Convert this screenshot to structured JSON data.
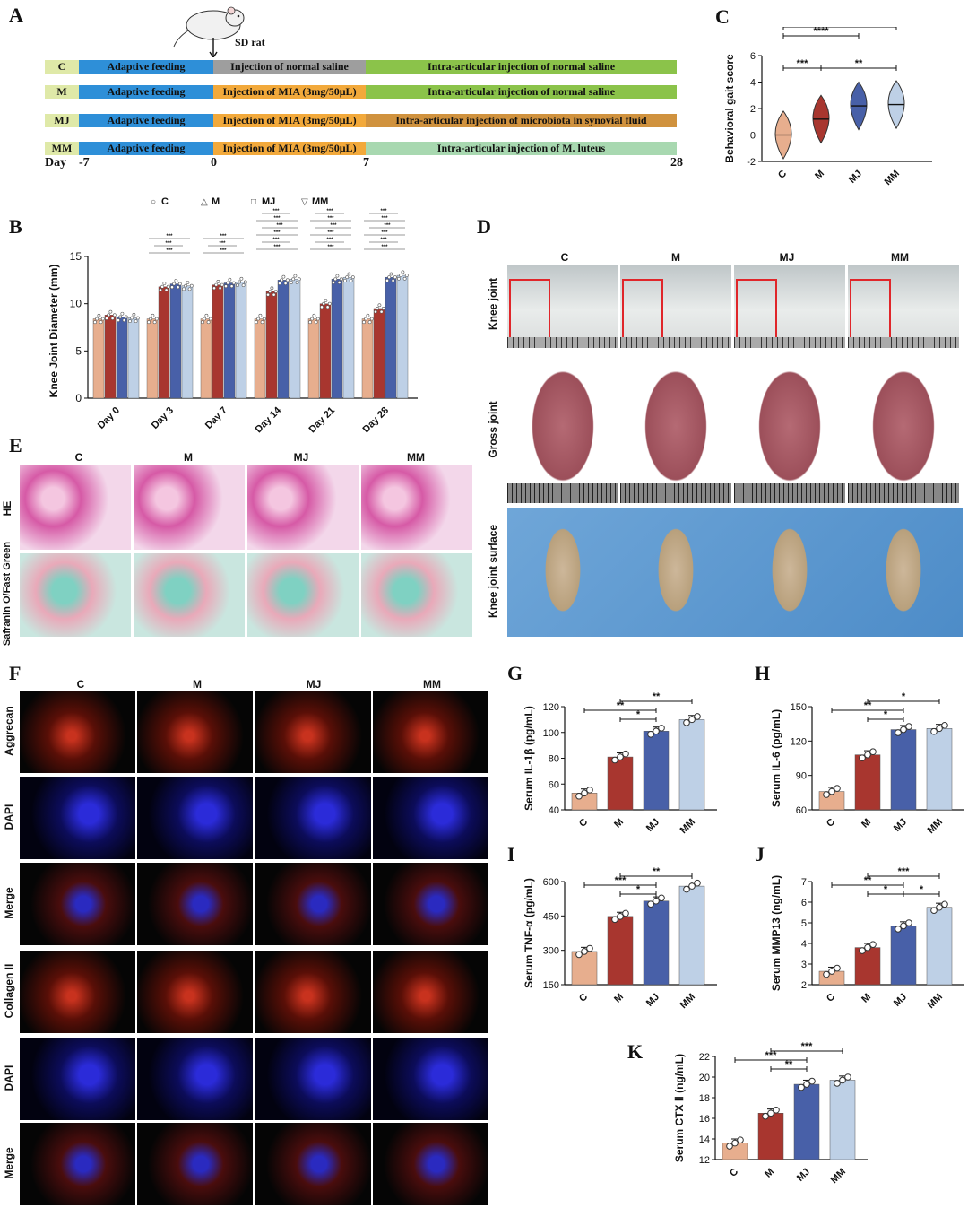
{
  "panels": {
    "A": "A",
    "B": "B",
    "C": "C",
    "D": "D",
    "E": "E",
    "F": "F",
    "G": "G",
    "H": "H",
    "I": "I",
    "J": "J",
    "K": "K"
  },
  "timeline": {
    "animal": "SD rat",
    "day_label": "Day",
    "day_ticks": [
      "-7",
      "0",
      "7",
      "28"
    ],
    "rows": [
      {
        "group": "C",
        "adaptive": "Adaptive feeding",
        "phase1": "Injection of normal saline",
        "phase2": "Intra-articular injection of normal saline",
        "c1": "#9e9e9e",
        "c2": "#8bc34a"
      },
      {
        "group": "M",
        "adaptive": "Adaptive feeding",
        "phase1": "Injection of MIA (3mg/50μL)",
        "phase2": "Intra-articular injection of normal saline",
        "c1": "#f2a93b",
        "c2": "#8bc34a"
      },
      {
        "group": "MJ",
        "adaptive": "Adaptive feeding",
        "phase1": "Injection of MIA (3mg/50μL)",
        "phase2": "Intra-articular injection of microbiota in synovial fluid",
        "c1": "#f2a93b",
        "c2": "#d0923e"
      },
      {
        "group": "MM",
        "adaptive": "Adaptive feeding",
        "phase1": "Injection of MIA (3mg/50μL)",
        "phase2": "Intra-articular injection of M. luteus",
        "c1": "#f2a93b",
        "c2": "#a8d8b0"
      }
    ]
  },
  "groups": [
    "C",
    "M",
    "MJ",
    "MM"
  ],
  "colors": {
    "C": "#e7ae8e",
    "M": "#a8362f",
    "MJ": "#4860a8",
    "MM": "#bed0e6"
  },
  "panelD": {
    "rows": [
      "Knee joint",
      "Gross joint",
      "Knee joint surface"
    ]
  },
  "panelE": {
    "rows": [
      "HE",
      "Safranin O/Fast Green"
    ]
  },
  "panelF": {
    "rows": [
      "Aggrecan",
      "DAPI",
      "Merge",
      "Collagen II",
      "DAPI",
      "Merge"
    ]
  },
  "chart_data": [
    {
      "id": "B",
      "type": "bar",
      "ylabel": "Knee Joint Diameter (mm)",
      "ylim": [
        0,
        15
      ],
      "yticks": [
        0,
        5,
        10,
        15
      ],
      "categories": [
        "Day 0",
        "Day 3",
        "Day 7",
        "Day 14",
        "Day 21",
        "Day 28"
      ],
      "legend": [
        "C",
        "M",
        "MJ",
        "MM"
      ],
      "series": [
        {
          "name": "C",
          "values": [
            8.4,
            8.4,
            8.4,
            8.4,
            8.4,
            8.4
          ]
        },
        {
          "name": "M",
          "values": [
            8.8,
            11.8,
            12.0,
            11.3,
            10.0,
            9.5
          ]
        },
        {
          "name": "MJ",
          "values": [
            8.6,
            12.1,
            12.2,
            12.5,
            12.6,
            12.8
          ]
        },
        {
          "name": "MM",
          "values": [
            8.5,
            11.9,
            12.3,
            12.6,
            12.8,
            13.0
          ]
        }
      ],
      "sig": [
        {
          "cat": 1,
          "labels": [
            "***",
            "***",
            "***"
          ]
        },
        {
          "cat": 2,
          "labels": [
            "***",
            "***",
            "***"
          ]
        },
        {
          "cat": 3,
          "labels": [
            "***",
            "***",
            "***",
            "***",
            "***",
            "***"
          ]
        },
        {
          "cat": 4,
          "labels": [
            "***",
            "***",
            "***",
            "***",
            "***",
            "***"
          ]
        },
        {
          "cat": 5,
          "labels": [
            "***",
            "***",
            "***",
            "***",
            "***",
            "***"
          ]
        }
      ]
    },
    {
      "id": "C",
      "type": "violin",
      "ylabel": "Behavioral gait score",
      "ylim": [
        -2,
        6
      ],
      "yticks": [
        -2,
        0,
        2,
        4,
        6
      ],
      "categories": [
        "C",
        "M",
        "MJ",
        "MM"
      ],
      "medians": [
        0,
        1.2,
        2.2,
        2.3
      ],
      "sig": [
        {
          "a": 1,
          "b": 2,
          "label": "**"
        },
        {
          "a": 0,
          "b": 3,
          "label": "****"
        },
        {
          "a": 0,
          "b": 2,
          "label": "****"
        },
        {
          "a": 0,
          "b": 1,
          "label": "***"
        },
        {
          "a": 1,
          "b": 3,
          "label": "**"
        }
      ]
    },
    {
      "id": "G",
      "type": "bar",
      "ylabel": "Serum IL-1β (pg/mL)",
      "ylim": [
        40,
        120
      ],
      "yticks": [
        40,
        60,
        80,
        100,
        120
      ],
      "categories": [
        "C",
        "M",
        "MJ",
        "MM"
      ],
      "values": [
        53,
        81,
        101,
        110
      ],
      "sig": [
        {
          "a": 0,
          "b": 2,
          "label": "**"
        },
        {
          "a": 1,
          "b": 3,
          "label": "**"
        },
        {
          "a": 1,
          "b": 2,
          "label": "*"
        }
      ]
    },
    {
      "id": "H",
      "type": "bar",
      "ylabel": "Serum IL-6 (pg/mL)",
      "ylim": [
        60,
        150
      ],
      "yticks": [
        60,
        90,
        120,
        150
      ],
      "categories": [
        "C",
        "M",
        "MJ",
        "MM"
      ],
      "values": [
        76,
        108,
        130,
        131
      ],
      "sig": [
        {
          "a": 0,
          "b": 2,
          "label": "**"
        },
        {
          "a": 1,
          "b": 3,
          "label": "*"
        },
        {
          "a": 1,
          "b": 2,
          "label": "*"
        }
      ]
    },
    {
      "id": "I",
      "type": "bar",
      "ylabel": "Serum TNF-α (pg/mL)",
      "ylim": [
        150,
        600
      ],
      "yticks": [
        150,
        300,
        450,
        600
      ],
      "categories": [
        "C",
        "M",
        "MJ",
        "MM"
      ],
      "values": [
        295,
        448,
        515,
        580
      ],
      "sig": [
        {
          "a": 0,
          "b": 2,
          "label": "***"
        },
        {
          "a": 1,
          "b": 3,
          "label": "**"
        },
        {
          "a": 1,
          "b": 2,
          "label": "*"
        }
      ]
    },
    {
      "id": "J",
      "type": "bar",
      "ylabel": "Serum MMP13 (ng/mL)",
      "ylim": [
        2,
        7
      ],
      "yticks": [
        2,
        3,
        4,
        5,
        6,
        7
      ],
      "categories": [
        "C",
        "M",
        "MJ",
        "MM"
      ],
      "values": [
        2.65,
        3.8,
        4.85,
        5.75
      ],
      "sig": [
        {
          "a": 0,
          "b": 2,
          "label": "**"
        },
        {
          "a": 1,
          "b": 3,
          "label": "***"
        },
        {
          "a": 1,
          "b": 2,
          "label": "*"
        },
        {
          "a": 2,
          "b": 3,
          "label": "*"
        }
      ]
    },
    {
      "id": "K",
      "type": "bar",
      "ylabel": "Serum CTX Ⅱ (ng/mL)",
      "ylim": [
        12,
        22
      ],
      "yticks": [
        12,
        14,
        16,
        18,
        20,
        22
      ],
      "categories": [
        "C",
        "M",
        "MJ",
        "MM"
      ],
      "values": [
        13.6,
        16.5,
        19.3,
        19.7
      ],
      "sig": [
        {
          "a": 0,
          "b": 2,
          "label": "***"
        },
        {
          "a": 1,
          "b": 3,
          "label": "***"
        },
        {
          "a": 1,
          "b": 2,
          "label": "**"
        }
      ]
    }
  ]
}
